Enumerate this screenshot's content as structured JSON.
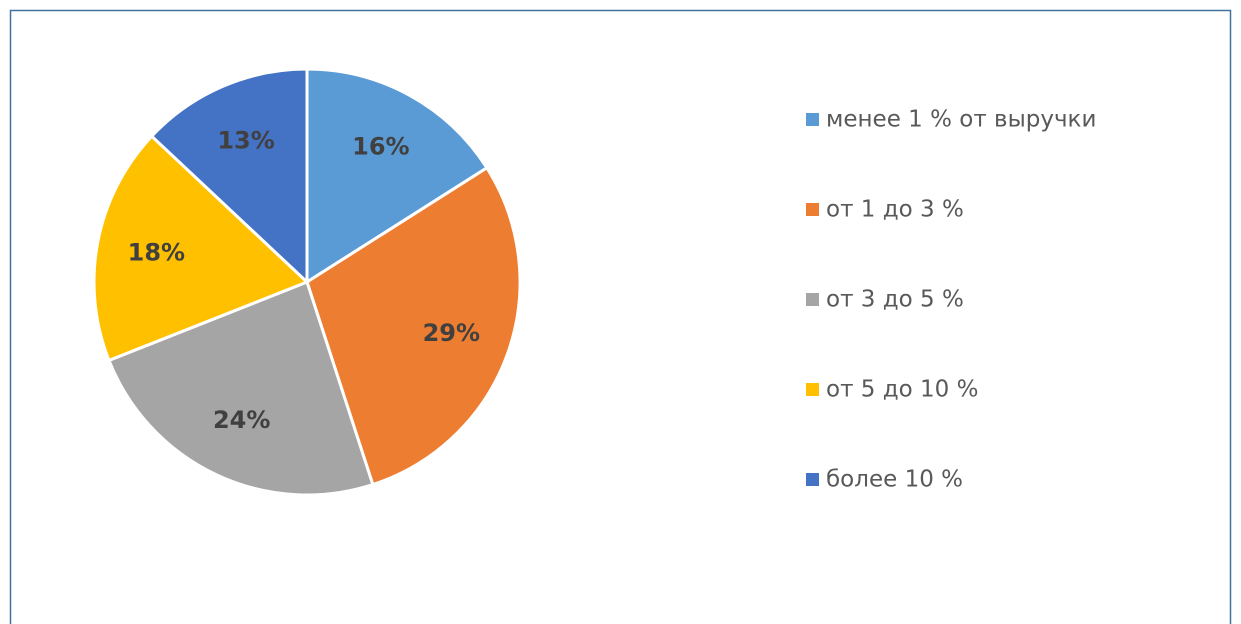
{
  "chart_data": {
    "type": "pie",
    "categories": [
      "менее 1 % от выручки",
      "от 1 до 3 %",
      "от 3 до 5 %",
      "от 5 до 10 %",
      "более 10 %"
    ],
    "values": [
      16,
      29,
      24,
      18,
      13
    ],
    "value_labels": [
      "16%",
      "29%",
      "24%",
      "18%",
      "13%"
    ],
    "colors": [
      "#5b9bd5",
      "#ed7d31",
      "#a5a5a5",
      "#ffc000",
      "#4472c4"
    ],
    "legend": "right"
  }
}
